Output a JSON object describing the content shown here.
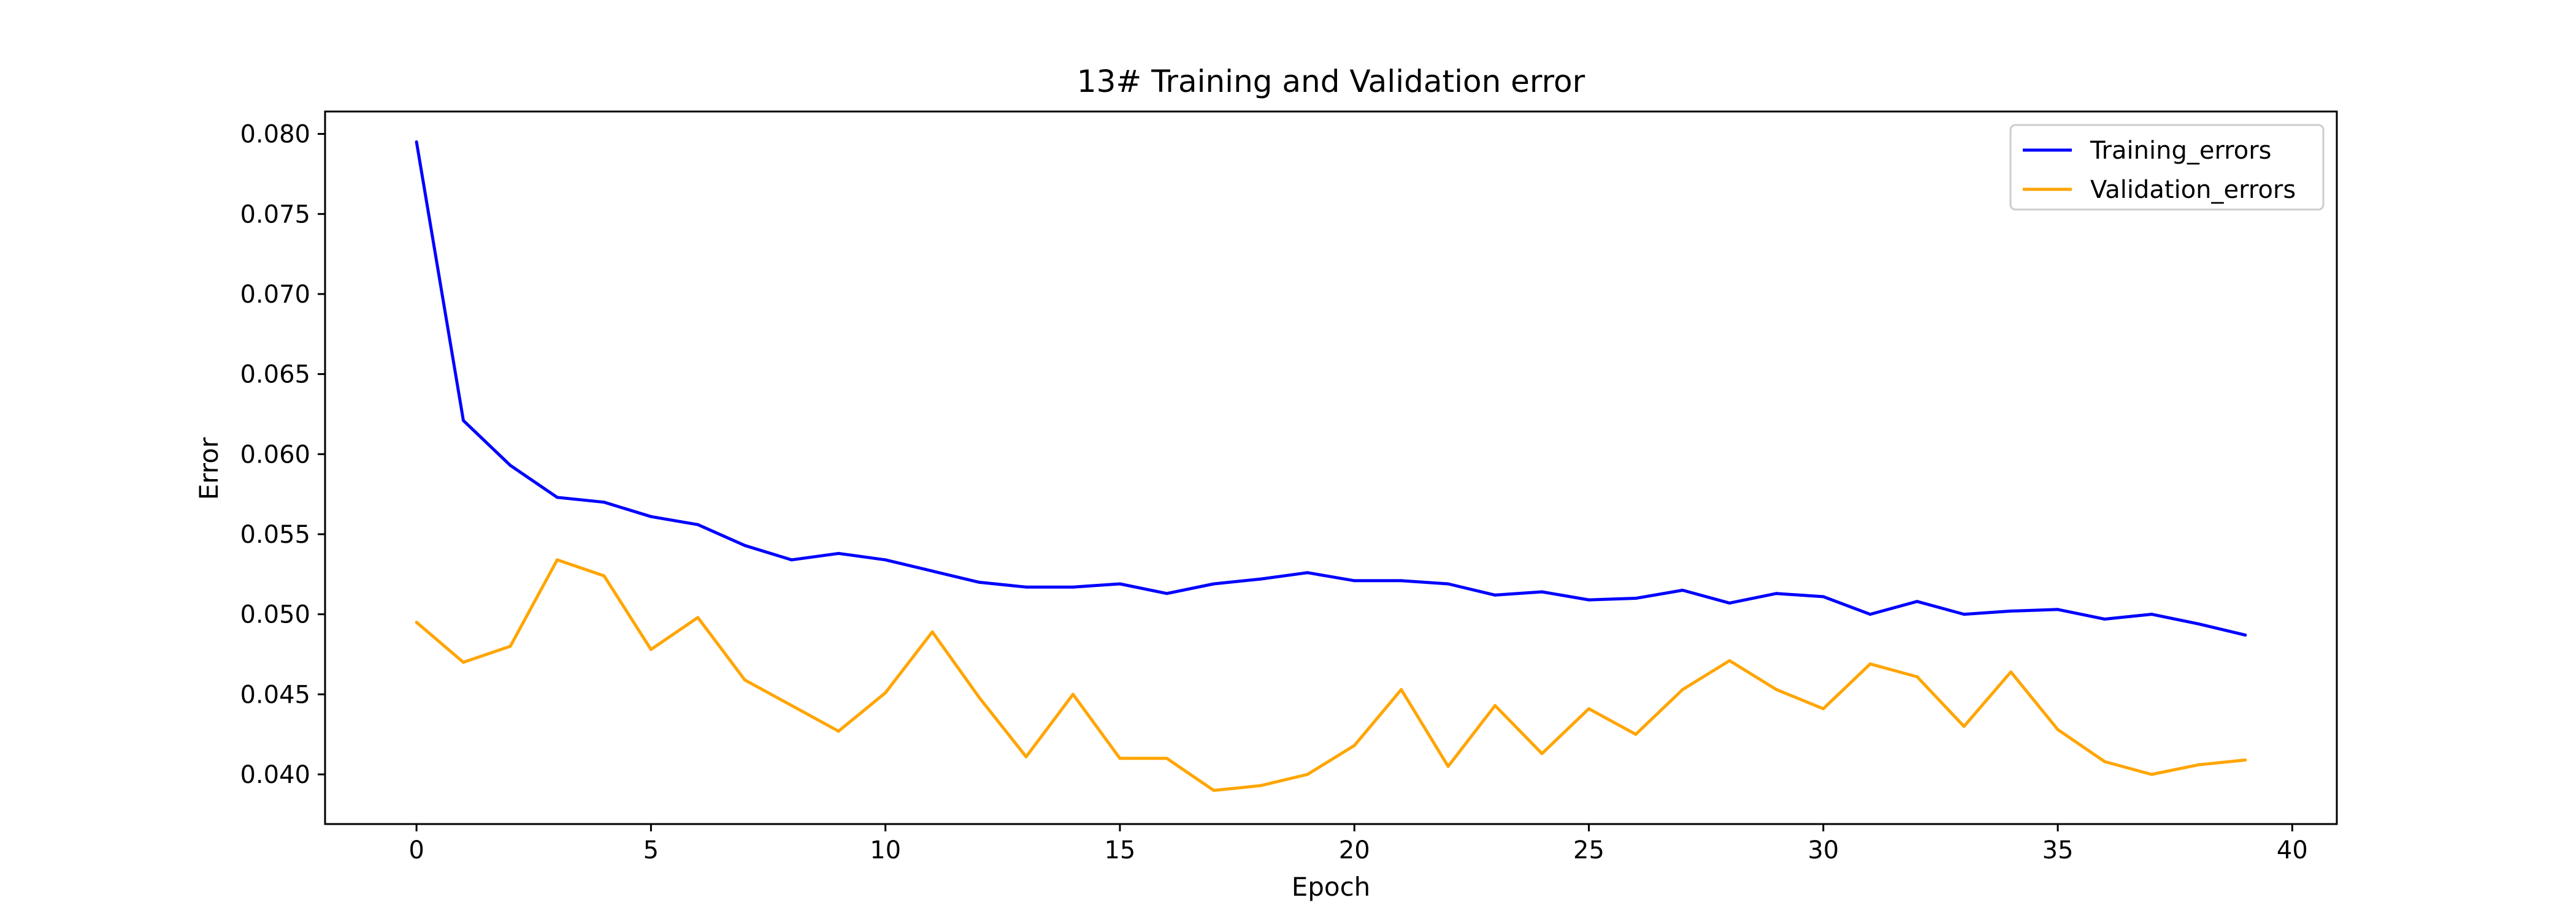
{
  "chart_data": {
    "type": "line",
    "title": "13# Training and Validation error",
    "xlabel": "Epoch",
    "ylabel": "Error",
    "xlim": [
      -1.95,
      40.95
    ],
    "ylim": [
      0.0369,
      0.0814
    ],
    "xticks": [
      0,
      5,
      10,
      15,
      20,
      25,
      30,
      35,
      40
    ],
    "xtick_labels": [
      "0",
      "5",
      "10",
      "15",
      "20",
      "25",
      "30",
      "35",
      "40"
    ],
    "yticks": [
      0.04,
      0.045,
      0.05,
      0.055,
      0.06,
      0.065,
      0.07,
      0.075,
      0.08
    ],
    "ytick_labels": [
      "0.040",
      "0.045",
      "0.050",
      "0.055",
      "0.060",
      "0.065",
      "0.070",
      "0.075",
      "0.080"
    ],
    "grid": false,
    "legend_position": "top-right",
    "x": [
      0,
      1,
      2,
      3,
      4,
      5,
      6,
      7,
      8,
      9,
      10,
      11,
      12,
      13,
      14,
      15,
      16,
      17,
      18,
      19,
      20,
      21,
      22,
      23,
      24,
      25,
      26,
      27,
      28,
      29,
      30,
      31,
      32,
      33,
      34,
      35,
      36,
      37,
      38,
      39
    ],
    "series": [
      {
        "name": "Training_errors",
        "color": "#0000ff",
        "values": [
          0.0795,
          0.0621,
          0.0593,
          0.0573,
          0.057,
          0.0561,
          0.0556,
          0.0543,
          0.0534,
          0.0538,
          0.0534,
          0.0527,
          0.052,
          0.0517,
          0.0517,
          0.0519,
          0.0513,
          0.0519,
          0.0522,
          0.0526,
          0.0521,
          0.0521,
          0.0519,
          0.0512,
          0.0514,
          0.0509,
          0.051,
          0.0515,
          0.0507,
          0.0513,
          0.0511,
          0.05,
          0.0508,
          0.05,
          0.0502,
          0.0503,
          0.0497,
          0.05,
          0.0494,
          0.0487
        ]
      },
      {
        "name": "Validation_errors",
        "color": "#ffa500",
        "values": [
          0.0495,
          0.047,
          0.048,
          0.0534,
          0.0524,
          0.0478,
          0.0498,
          0.0459,
          0.0443,
          0.0427,
          0.0451,
          0.0489,
          0.0448,
          0.0411,
          0.045,
          0.041,
          0.041,
          0.039,
          0.0393,
          0.04,
          0.0418,
          0.0453,
          0.0405,
          0.0443,
          0.0413,
          0.0441,
          0.0425,
          0.0453,
          0.0471,
          0.0453,
          0.0441,
          0.0469,
          0.0461,
          0.043,
          0.0464,
          0.0428,
          0.0408,
          0.04,
          0.0406,
          0.0409
        ]
      }
    ]
  }
}
